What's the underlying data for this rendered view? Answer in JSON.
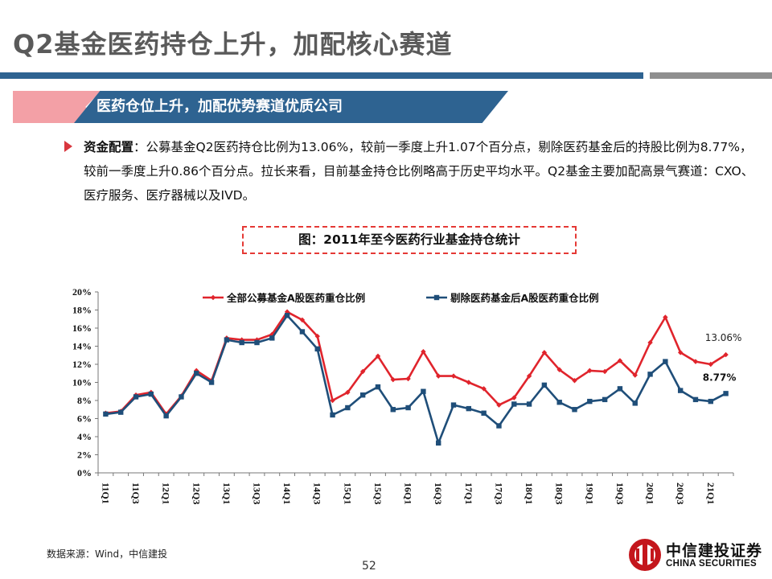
{
  "page": {
    "title": "Q2基金医药持仓上升，加配核心赛道",
    "banner": "医药仓位上升，加配优势赛道优质公司",
    "bullet_lead": "资金配置",
    "bullet_text": "：公募基金Q2医药持仓比例为13.06%，较前一季度上升1.07个百分点，剔除医药基金后的持股比例为8.77%，较前一季度上升0.86个百分点。拉长来看，目前基金持仓比例略高于历史平均水平。Q2基金主要加配高景气赛道：CXO、医疗服务、医疗器械以及IVD。",
    "figure_caption": "图：2011年至今医药行业基金持仓统计",
    "source": "数据来源：Wind，中信建投",
    "page_number": "52",
    "logo_cn": "中信建投证券",
    "logo_en": "CHINA SECURITIES"
  },
  "colors": {
    "title_gray": "#5a5a5a",
    "brand_blue": "#2e6391",
    "banner_pink": "#f3a0a6",
    "series_red": "#e0242c",
    "series_blue": "#1f4e79",
    "logo_red": "#c4161c"
  },
  "chart_data": {
    "type": "line",
    "x": [
      "11Q1",
      "11Q2",
      "11Q3",
      "11Q4",
      "12Q1",
      "12Q2",
      "12Q3",
      "12Q4",
      "13Q1",
      "13Q2",
      "13Q3",
      "13Q4",
      "14Q1",
      "14Q2",
      "14Q3",
      "14Q4",
      "15Q1",
      "15Q2",
      "15Q3",
      "15Q4",
      "16Q1",
      "16Q2",
      "16Q3",
      "16Q4",
      "17Q1",
      "17Q2",
      "17Q3",
      "17Q4",
      "18Q1",
      "18Q2",
      "18Q3",
      "18Q4",
      "19Q1",
      "19Q2",
      "19Q3",
      "19Q4",
      "20Q1",
      "20Q2",
      "20Q3",
      "20Q4",
      "21Q1",
      "21Q2"
    ],
    "x_tick_labels": [
      "11Q1",
      "11Q3",
      "12Q1",
      "12Q3",
      "13Q1",
      "13Q3",
      "14Q1",
      "14Q3",
      "15Q1",
      "15Q3",
      "16Q1",
      "16Q3",
      "17Q1",
      "17Q3",
      "18Q1",
      "18Q3",
      "19Q1",
      "19Q3",
      "20Q1",
      "20Q3",
      "21Q1"
    ],
    "y_ticks": [
      "0%",
      "2%",
      "4%",
      "6%",
      "8%",
      "10%",
      "12%",
      "14%",
      "16%",
      "18%",
      "20%"
    ],
    "ylim": [
      0,
      20
    ],
    "legend_position": "top",
    "series": [
      {
        "name": "全部公募基金A股医药重仓比例",
        "values": [
          6.6,
          6.8,
          8.6,
          8.9,
          6.5,
          8.5,
          11.3,
          10.2,
          14.9,
          14.7,
          14.7,
          15.3,
          17.8,
          16.9,
          15.1,
          8.0,
          8.9,
          11.2,
          12.9,
          10.3,
          10.4,
          13.4,
          10.7,
          10.7,
          10.0,
          9.3,
          7.5,
          8.3,
          10.7,
          13.3,
          11.4,
          10.2,
          11.3,
          11.2,
          12.4,
          10.8,
          14.4,
          17.2,
          13.3,
          12.3,
          12.0,
          13.06
        ]
      },
      {
        "name": "剔除医药基金后A股医药重仓比例",
        "values": [
          6.5,
          6.7,
          8.4,
          8.7,
          6.3,
          8.4,
          11.0,
          10.0,
          14.7,
          14.4,
          14.4,
          14.9,
          17.4,
          15.6,
          13.7,
          6.4,
          7.2,
          8.6,
          9.5,
          7.0,
          7.2,
          9.0,
          3.3,
          7.5,
          7.1,
          6.6,
          5.2,
          7.6,
          7.6,
          9.7,
          7.8,
          7.0,
          7.9,
          8.1,
          9.3,
          7.7,
          10.9,
          12.3,
          9.1,
          8.1,
          7.9,
          8.77
        ]
      }
    ],
    "annotations": [
      "13.06%",
      "8.77%"
    ]
  }
}
